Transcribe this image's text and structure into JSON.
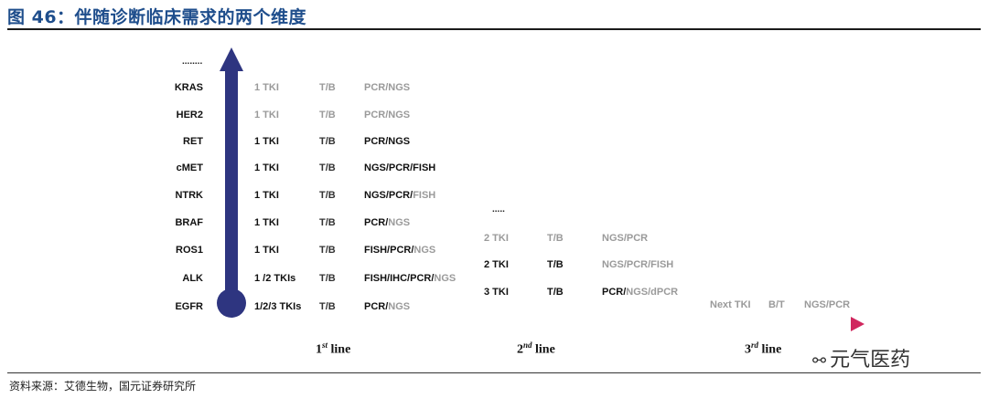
{
  "title": "图 46：伴随诊断临床需求的两个维度",
  "source": "资料来源：艾德生物，国元证券研究所",
  "watermark": "元气医药",
  "vertical_ellipsis": "........",
  "second_line_ellipsis": ".....",
  "targets": [
    "KRAS",
    "HER2",
    "RET",
    "cMET",
    "NTRK",
    "BRAF",
    "ROS1",
    "ALK",
    "EGFR"
  ],
  "first_line_rows": [
    {
      "tki": "1 TKI",
      "tki_state": "grey",
      "sample": "T/B",
      "sample_state": "grey",
      "method_dark": "",
      "method_grey": "PCR/NGS"
    },
    {
      "tki": "1 TKI",
      "tki_state": "grey",
      "sample": "T/B",
      "sample_state": "grey",
      "method_dark": "",
      "method_grey": "PCR/NGS"
    },
    {
      "tki": "1 TKI",
      "tki_state": "dark",
      "sample": "T/B",
      "sample_state": "mixed",
      "method_dark": "PCR/NGS",
      "method_grey": ""
    },
    {
      "tki": "1 TKI",
      "tki_state": "dark",
      "sample": "T/B",
      "sample_state": "mixed",
      "method_dark": "NGS/PCR/FISH",
      "method_grey": ""
    },
    {
      "tki": "1 TKI",
      "tki_state": "dark",
      "sample": "T/B",
      "sample_state": "mixed",
      "method_dark": "NGS/PCR/",
      "method_grey": "FISH"
    },
    {
      "tki": "1 TKI",
      "tki_state": "dark",
      "sample": "T/B",
      "sample_state": "mixed",
      "method_dark": "PCR/",
      "method_grey": "NGS"
    },
    {
      "tki": "1 TKI",
      "tki_state": "dark",
      "sample": "T/B",
      "sample_state": "mixed",
      "method_dark": "FISH/PCR/",
      "method_grey": "NGS"
    },
    {
      "tki": "1 /2 TKIs",
      "tki_state": "dark",
      "sample": "T/B",
      "sample_state": "mixed",
      "method_dark": "FISH/IHC/PCR/",
      "method_grey": "NGS"
    },
    {
      "tki": "1/2/3 TKIs",
      "tki_state": "dark",
      "sample": "T/B",
      "sample_state": "mixed",
      "method_dark": "PCR/",
      "method_grey": "NGS"
    }
  ],
  "second_line_rows": [
    {
      "tki": "2 TKI",
      "tki_state": "grey",
      "sample": "T/B",
      "sample_state": "grey",
      "method_dark": "",
      "method_grey": "NGS/PCR"
    },
    {
      "tki": "2 TKI",
      "tki_state": "dark",
      "sample": "T/B",
      "sample_state": "dark",
      "method_dark": "",
      "method_grey": "NGS/PCR/FISH"
    },
    {
      "tki": "3 TKI",
      "tki_state": "dark",
      "sample": "T/B",
      "sample_state": "dark",
      "method_dark": "PCR/",
      "method_grey": "NGS/dPCR"
    }
  ],
  "third_line_row": {
    "tki": "Next TKI",
    "sample": "B/T",
    "method": "NGS/PCR"
  },
  "line_labels": [
    {
      "num": "1",
      "sup": "st",
      "word": "line"
    },
    {
      "num": "2",
      "sup": "nd",
      "word": "line"
    },
    {
      "num": "3",
      "sup": "rd",
      "word": "line"
    }
  ],
  "colors": {
    "title": "#1f4e8c",
    "vertical_arrow": "#2e3580",
    "horizontal_start": "#2e3580",
    "horizontal_end": "#d0275e",
    "grey_text": "#9a9a9a",
    "dark_text": "#111111"
  }
}
